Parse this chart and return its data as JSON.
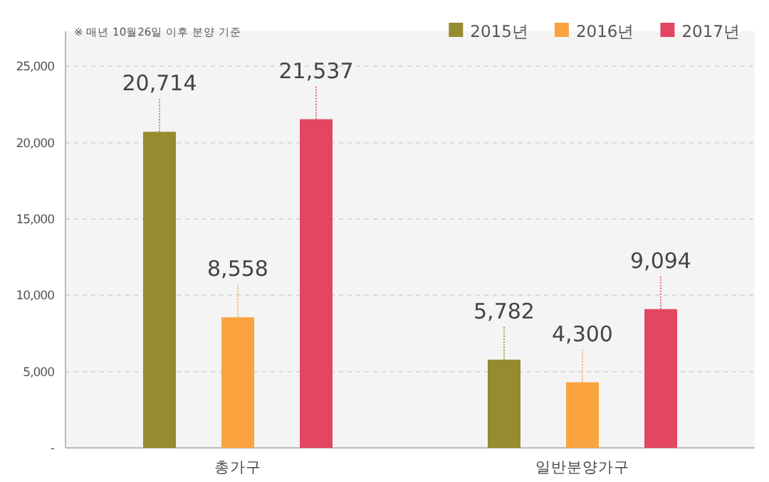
{
  "chart_data": {
    "type": "bar",
    "annotations": [
      "※ 매년 10월26일 이후 분양 기준"
    ],
    "categories": [
      "총가구",
      "일반분양가구"
    ],
    "series": [
      {
        "name": "2015년",
        "color": "#968b2f",
        "values": [
          20714,
          5782
        ],
        "value_labels": [
          "20,714",
          "5,782"
        ]
      },
      {
        "name": "2016년",
        "color": "#fba43f",
        "values": [
          8558,
          4300
        ],
        "value_labels": [
          "8,558",
          "4,300"
        ]
      },
      {
        "name": "2017년",
        "color": "#e34663",
        "values": [
          21537,
          9094
        ],
        "value_labels": [
          "21,537",
          "9,094"
        ]
      }
    ],
    "ylim": [
      0,
      27300
    ],
    "yticks": [
      {
        "value": 0,
        "label": "-"
      },
      {
        "value": 5000,
        "label": "5,000"
      },
      {
        "value": 10000,
        "label": "10,000"
      },
      {
        "value": 15000,
        "label": "15,000"
      },
      {
        "value": 20000,
        "label": "20,000"
      },
      {
        "value": 25000,
        "label": "25,000"
      }
    ],
    "grid": "y",
    "legend": "top right"
  }
}
